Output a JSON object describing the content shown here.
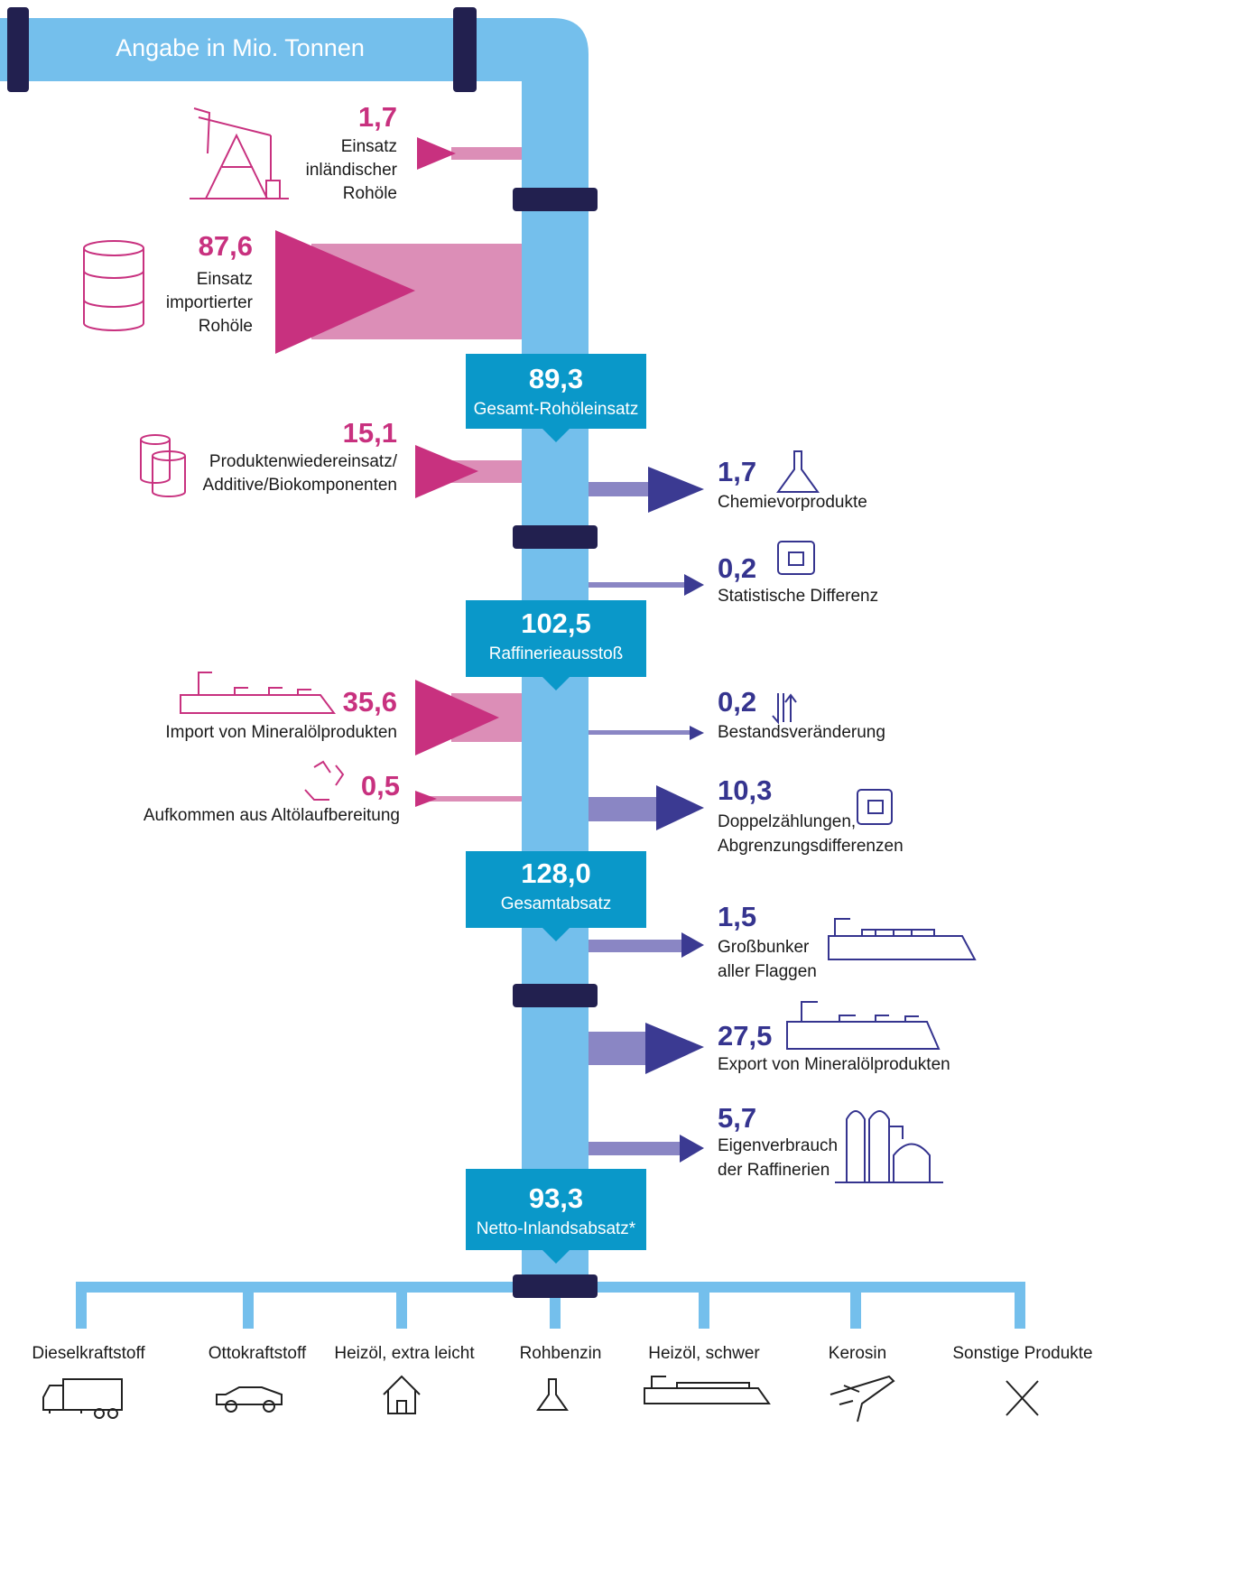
{
  "header": "Angabe in Mio. Tonnen",
  "inputs": [
    {
      "value": "1,7",
      "label": [
        "Einsatz",
        "inländischer",
        "Rohöle"
      ]
    },
    {
      "value": "87,6",
      "label": [
        "Einsatz",
        "importierter",
        "Rohöle"
      ]
    },
    {
      "value": "15,1",
      "label": [
        "Produktenwiedereinsatz/",
        "Additive/Biokomponenten"
      ]
    },
    {
      "value": "35,6",
      "label": [
        "Import von Mineralölprodukten"
      ]
    },
    {
      "value": "0,5",
      "label": [
        "Aufkommen aus Altölaufbereitung"
      ]
    }
  ],
  "totals": [
    {
      "value": "89,3",
      "label": "Gesamt-Rohöleinsatz"
    },
    {
      "value": "102,5",
      "label": "Raffinerieausstoß"
    },
    {
      "value": "128,0",
      "label": "Gesamtabsatz"
    },
    {
      "value": "93,3",
      "label": "Netto-Inlandsabsatz*"
    }
  ],
  "outputs": [
    {
      "value": "1,7",
      "label": [
        "Chemievorprodukte"
      ]
    },
    {
      "value": "0,2",
      "label": [
        "Statistische Differenz"
      ]
    },
    {
      "value": "0,2",
      "label": [
        "Bestandsveränderung"
      ]
    },
    {
      "value": "10,3",
      "label": [
        "Doppelzählungen,",
        "Abgrenzungsdifferenzen"
      ]
    },
    {
      "value": "1,5",
      "label": [
        "Großbunker",
        "aller Flaggen"
      ]
    },
    {
      "value": "27,5",
      "label": [
        "Export von Mineralölprodukten"
      ]
    },
    {
      "value": "5,7",
      "label": [
        "Eigenverbrauch",
        "der Raffinerien"
      ]
    }
  ],
  "products": [
    "Dieselkraftstoff",
    "Ottokraftstoff",
    "Heizöl, extra leicht",
    "Rohbenzin",
    "Heizöl, schwer",
    "Kerosin",
    "Sonstige Produkte"
  ]
}
